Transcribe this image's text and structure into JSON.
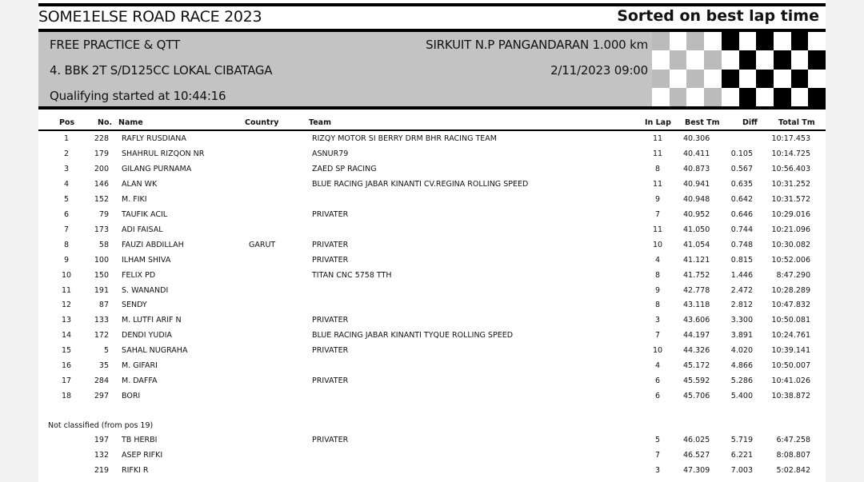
{
  "header": {
    "event_title": "SOME1ELSE ROAD RACE 2023",
    "sort_note": "Sorted on best lap time",
    "session": "FREE PRACTICE & QTT",
    "class": "4. BBK 2T S/D125CC LOKAL CIBATAGA",
    "started": "Qualifying started at 10:44:16",
    "circuit": "SIRKUIT N.P PANGANDARAN 1.000 km",
    "datetime": "2/11/2023 09:00"
  },
  "columns": {
    "pos": "Pos",
    "no": "No.",
    "name": "Name",
    "country": "Country",
    "team": "Team",
    "in_lap": "In Lap",
    "best": "Best Tm",
    "diff": "Diff",
    "total": "Total Tm"
  },
  "classified": [
    {
      "pos": "1",
      "no": "228",
      "name": "RAFLY RUSDIANA",
      "country": "",
      "team": "RIZQY MOTOR SI BERRY DRM BHR RACING TEAM",
      "in_lap": "11",
      "best": "40.306",
      "diff": "",
      "total": "10:17.453"
    },
    {
      "pos": "2",
      "no": "179",
      "name": "SHAHRUL RIZQON NR",
      "country": "",
      "team": "ASNUR79",
      "in_lap": "11",
      "best": "40.411",
      "diff": "0.105",
      "total": "10:14.725"
    },
    {
      "pos": "3",
      "no": "200",
      "name": "GILANG PURNAMA",
      "country": "",
      "team": "ZAED SP RACING",
      "in_lap": "8",
      "best": "40.873",
      "diff": "0.567",
      "total": "10:56.403"
    },
    {
      "pos": "4",
      "no": "146",
      "name": "ALAN WK",
      "country": "",
      "team": "BLUE RACING JABAR KINANTI CV.REGINA ROLLING SPEED",
      "in_lap": "11",
      "best": "40.941",
      "diff": "0.635",
      "total": "10:31.252"
    },
    {
      "pos": "5",
      "no": "152",
      "name": "M. FIKI",
      "country": "",
      "team": "",
      "in_lap": "9",
      "best": "40.948",
      "diff": "0.642",
      "total": "10:31.572"
    },
    {
      "pos": "6",
      "no": "79",
      "name": "TAUFIK ACIL",
      "country": "",
      "team": "PRIVATER",
      "in_lap": "7",
      "best": "40.952",
      "diff": "0.646",
      "total": "10:29.016"
    },
    {
      "pos": "7",
      "no": "173",
      "name": "ADI FAISAL",
      "country": "",
      "team": "",
      "in_lap": "11",
      "best": "41.050",
      "diff": "0.744",
      "total": "10:21.096"
    },
    {
      "pos": "8",
      "no": "58",
      "name": "FAUZI ABDILLAH",
      "country": "GARUT",
      "team": "PRIVATER",
      "in_lap": "10",
      "best": "41.054",
      "diff": "0.748",
      "total": "10:30.082"
    },
    {
      "pos": "9",
      "no": "100",
      "name": "ILHAM SHIVA",
      "country": "",
      "team": "PRIVATER",
      "in_lap": "4",
      "best": "41.121",
      "diff": "0.815",
      "total": "10:52.006"
    },
    {
      "pos": "10",
      "no": "150",
      "name": "FELIX PD",
      "country": "",
      "team": "TITAN CNC 5758 TTH",
      "in_lap": "8",
      "best": "41.752",
      "diff": "1.446",
      "total": "8:47.290"
    },
    {
      "pos": "11",
      "no": "191",
      "name": "S. WANANDI",
      "country": "",
      "team": "",
      "in_lap": "9",
      "best": "42.778",
      "diff": "2.472",
      "total": "10:28.289"
    },
    {
      "pos": "12",
      "no": "87",
      "name": "SENDY",
      "country": "",
      "team": "",
      "in_lap": "8",
      "best": "43.118",
      "diff": "2.812",
      "total": "10:47.832"
    },
    {
      "pos": "13",
      "no": "133",
      "name": "M. LUTFI ARIF N",
      "country": "",
      "team": "PRIVATER",
      "in_lap": "3",
      "best": "43.606",
      "diff": "3.300",
      "total": "10:50.081"
    },
    {
      "pos": "14",
      "no": "172",
      "name": "DENDI YUDIA",
      "country": "",
      "team": "BLUE RACING JABAR KINANTI TYQUE ROLLING SPEED",
      "in_lap": "7",
      "best": "44.197",
      "diff": "3.891",
      "total": "10:24.761"
    },
    {
      "pos": "15",
      "no": "5",
      "name": "SAHAL NUGRAHA",
      "country": "",
      "team": "PRIVATER",
      "in_lap": "10",
      "best": "44.326",
      "diff": "4.020",
      "total": "10:39.141"
    },
    {
      "pos": "16",
      "no": "35",
      "name": "M. GIFARI",
      "country": "",
      "team": "",
      "in_lap": "4",
      "best": "45.172",
      "diff": "4.866",
      "total": "10:50.007"
    },
    {
      "pos": "17",
      "no": "284",
      "name": "M. DAFFA",
      "country": "",
      "team": "PRIVATER",
      "in_lap": "6",
      "best": "45.592",
      "diff": "5.286",
      "total": "10:41.026"
    },
    {
      "pos": "18",
      "no": "297",
      "name": "BORI",
      "country": "",
      "team": "",
      "in_lap": "6",
      "best": "45.706",
      "diff": "5.400",
      "total": "10:38.872"
    }
  ],
  "not_classified_label": "Not classified (from pos 19)",
  "not_classified": [
    {
      "pos": "",
      "no": "197",
      "name": "TB HERBI",
      "country": "",
      "team": "PRIVATER",
      "in_lap": "5",
      "best": "46.025",
      "diff": "5.719",
      "total": "6:47.258"
    },
    {
      "pos": "",
      "no": "132",
      "name": "ASEP RIFKI",
      "country": "",
      "team": "",
      "in_lap": "7",
      "best": "46.527",
      "diff": "6.221",
      "total": "8:08.807"
    },
    {
      "pos": "",
      "no": "219",
      "name": "RIFKI R",
      "country": "",
      "team": "",
      "in_lap": "3",
      "best": "47.309",
      "diff": "7.003",
      "total": "5:02.842"
    }
  ],
  "colors": {
    "band": "#c3c3c3",
    "flag_dark": "#000000",
    "flag_faded": "#bbbbbb"
  },
  "icons": {
    "flag": "checkered-flag-icon"
  }
}
